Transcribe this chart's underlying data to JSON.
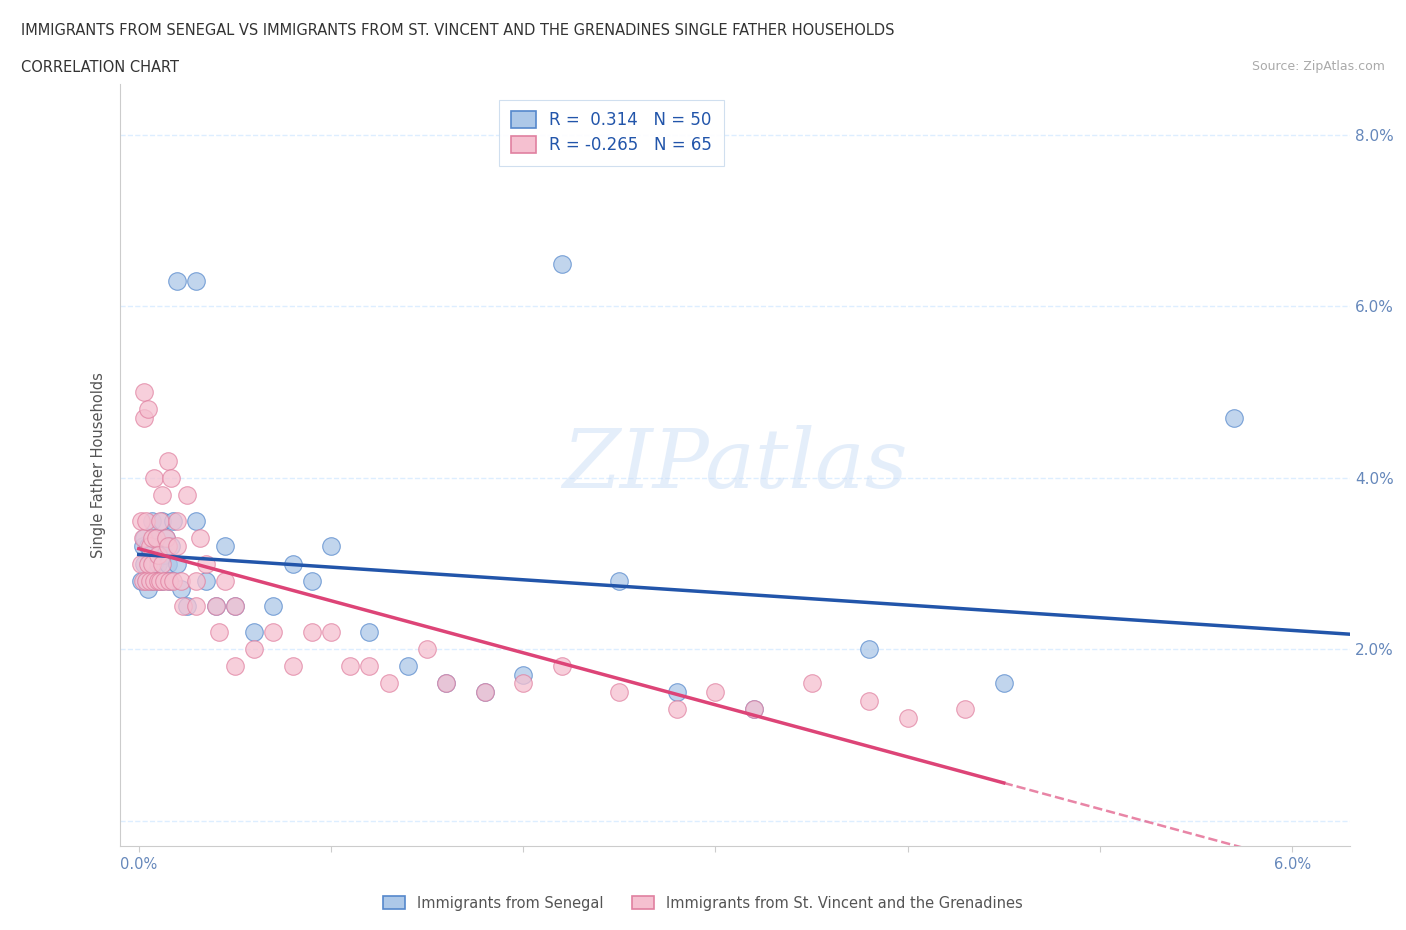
{
  "title_line1": "IMMIGRANTS FROM SENEGAL VS IMMIGRANTS FROM ST. VINCENT AND THE GRENADINES SINGLE FATHER HOUSEHOLDS",
  "title_line2": "CORRELATION CHART",
  "source": "Source: ZipAtlas.com",
  "ylabel": "Single Father Households",
  "watermark": "ZIPatlas",
  "senegal_color": "#adc8e8",
  "senegal_edge_color": "#5588cc",
  "senegal_line_color": "#2255aa",
  "stvincent_color": "#f5c0d0",
  "stvincent_edge_color": "#e080a0",
  "stvincent_line_color": "#dd4477",
  "senegal_R": 0.314,
  "senegal_N": 50,
  "stvincent_R": -0.265,
  "stvincent_N": 65,
  "xlim_min": -0.001,
  "xlim_max": 0.063,
  "ylim_min": -0.003,
  "ylim_max": 0.086,
  "senegal_x": [
    0.0001,
    0.0002,
    0.0003,
    0.0003,
    0.0004,
    0.0005,
    0.0005,
    0.0006,
    0.0007,
    0.0007,
    0.0008,
    0.0009,
    0.001,
    0.001,
    0.0011,
    0.0012,
    0.0012,
    0.0013,
    0.0014,
    0.0015,
    0.0016,
    0.0017,
    0.0018,
    0.002,
    0.002,
    0.0022,
    0.0025,
    0.003,
    0.003,
    0.0035,
    0.004,
    0.0045,
    0.005,
    0.006,
    0.007,
    0.008,
    0.009,
    0.01,
    0.012,
    0.014,
    0.016,
    0.018,
    0.02,
    0.022,
    0.025,
    0.028,
    0.032,
    0.038,
    0.045,
    0.057
  ],
  "senegal_y": [
    0.028,
    0.032,
    0.03,
    0.033,
    0.028,
    0.027,
    0.032,
    0.031,
    0.028,
    0.035,
    0.03,
    0.033,
    0.03,
    0.028,
    0.032,
    0.028,
    0.035,
    0.031,
    0.033,
    0.03,
    0.028,
    0.032,
    0.035,
    0.03,
    0.063,
    0.027,
    0.025,
    0.035,
    0.063,
    0.028,
    0.025,
    0.032,
    0.025,
    0.022,
    0.025,
    0.03,
    0.028,
    0.032,
    0.022,
    0.018,
    0.016,
    0.015,
    0.017,
    0.065,
    0.028,
    0.015,
    0.013,
    0.02,
    0.016,
    0.047
  ],
  "stvincent_x": [
    0.0001,
    0.0001,
    0.0002,
    0.0002,
    0.0003,
    0.0003,
    0.0004,
    0.0004,
    0.0005,
    0.0005,
    0.0006,
    0.0006,
    0.0007,
    0.0007,
    0.0008,
    0.0008,
    0.0009,
    0.001,
    0.001,
    0.0011,
    0.0011,
    0.0012,
    0.0012,
    0.0013,
    0.0014,
    0.0015,
    0.0015,
    0.0016,
    0.0017,
    0.0018,
    0.002,
    0.002,
    0.0022,
    0.0023,
    0.0025,
    0.003,
    0.003,
    0.0032,
    0.0035,
    0.004,
    0.0042,
    0.0045,
    0.005,
    0.005,
    0.006,
    0.007,
    0.008,
    0.009,
    0.01,
    0.011,
    0.012,
    0.013,
    0.015,
    0.016,
    0.018,
    0.02,
    0.022,
    0.025,
    0.028,
    0.03,
    0.032,
    0.035,
    0.038,
    0.04,
    0.043
  ],
  "stvincent_y": [
    0.03,
    0.035,
    0.028,
    0.033,
    0.05,
    0.047,
    0.035,
    0.028,
    0.03,
    0.048,
    0.032,
    0.028,
    0.033,
    0.03,
    0.028,
    0.04,
    0.033,
    0.031,
    0.028,
    0.035,
    0.028,
    0.03,
    0.038,
    0.028,
    0.033,
    0.032,
    0.042,
    0.028,
    0.04,
    0.028,
    0.032,
    0.035,
    0.028,
    0.025,
    0.038,
    0.028,
    0.025,
    0.033,
    0.03,
    0.025,
    0.022,
    0.028,
    0.018,
    0.025,
    0.02,
    0.022,
    0.018,
    0.022,
    0.022,
    0.018,
    0.018,
    0.016,
    0.02,
    0.016,
    0.015,
    0.016,
    0.018,
    0.015,
    0.013,
    0.015,
    0.013,
    0.016,
    0.014,
    0.012,
    0.013
  ],
  "grid_color": "#ddeeff",
  "grid_style": "--",
  "background_color": "#ffffff",
  "tick_label_color": "#6688bb",
  "title_color": "#333333",
  "ylabel_color": "#555555",
  "source_color": "#aaaaaa"
}
